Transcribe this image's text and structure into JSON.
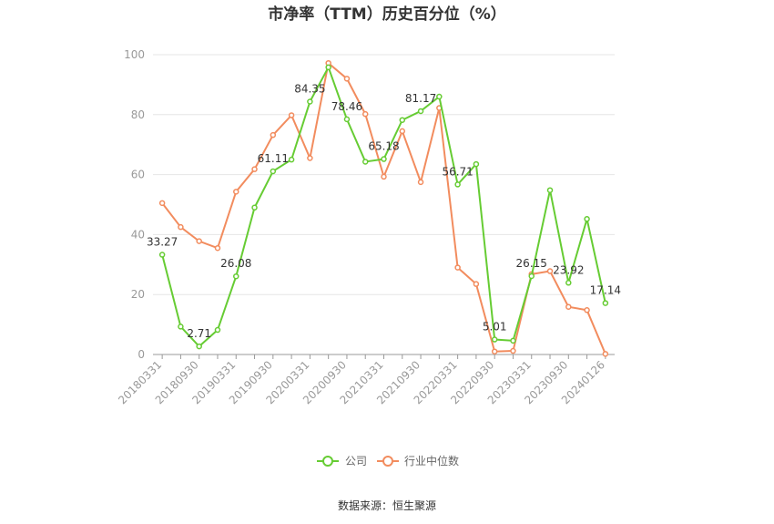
{
  "chart_data": {
    "type": "line",
    "title": "市净率（TTM）历史百分位（%）",
    "source": "数据来源：恒生聚源",
    "ylim": [
      0,
      100
    ],
    "yticks": [
      0,
      20,
      40,
      60,
      80,
      100
    ],
    "xtick_labels": [
      "20180331",
      "20180930",
      "20190331",
      "20190930",
      "20200331",
      "20200930",
      "20210331",
      "20210930",
      "20220331",
      "20220930",
      "20230331",
      "20230930",
      "20240126"
    ],
    "x": [
      "20180331",
      "20180630",
      "20180930",
      "20181231",
      "20190331",
      "20190630",
      "20190930",
      "20191231",
      "20200331",
      "20200630",
      "20200930",
      "20201231",
      "20210331",
      "20210630",
      "20210930",
      "20211231",
      "20220331",
      "20220630",
      "20220930",
      "20221231",
      "20230331",
      "20230630",
      "20230930",
      "20231231",
      "20240126"
    ],
    "series": [
      {
        "name": "公司",
        "color": "#66cc33",
        "values": [
          33.27,
          9.3,
          2.71,
          8.2,
          26.08,
          49.0,
          61.11,
          65.0,
          84.35,
          95.8,
          78.46,
          64.3,
          65.18,
          78.2,
          81.17,
          86.0,
          56.71,
          63.5,
          5.01,
          4.6,
          26.15,
          54.8,
          23.92,
          45.2,
          17.14
        ],
        "labels": [
          "33.27",
          null,
          "2.71",
          null,
          "26.08",
          null,
          "61.11",
          null,
          "84.35",
          null,
          "78.46",
          null,
          "65.18",
          null,
          "81.17",
          null,
          "56.71",
          null,
          "5.01",
          null,
          "26.15",
          null,
          "23.92",
          null,
          "17.14"
        ]
      },
      {
        "name": "行业中位数",
        "color": "#f28c5e",
        "values": [
          50.5,
          42.5,
          37.8,
          35.5,
          54.3,
          61.8,
          73.2,
          79.8,
          65.5,
          97.2,
          92.0,
          80.2,
          59.3,
          74.5,
          57.5,
          82.2,
          29.0,
          23.5,
          1.0,
          1.2,
          26.8,
          27.8,
          15.9,
          14.8,
          0.2
        ]
      }
    ],
    "grid": true,
    "legend": "bottom-center"
  }
}
